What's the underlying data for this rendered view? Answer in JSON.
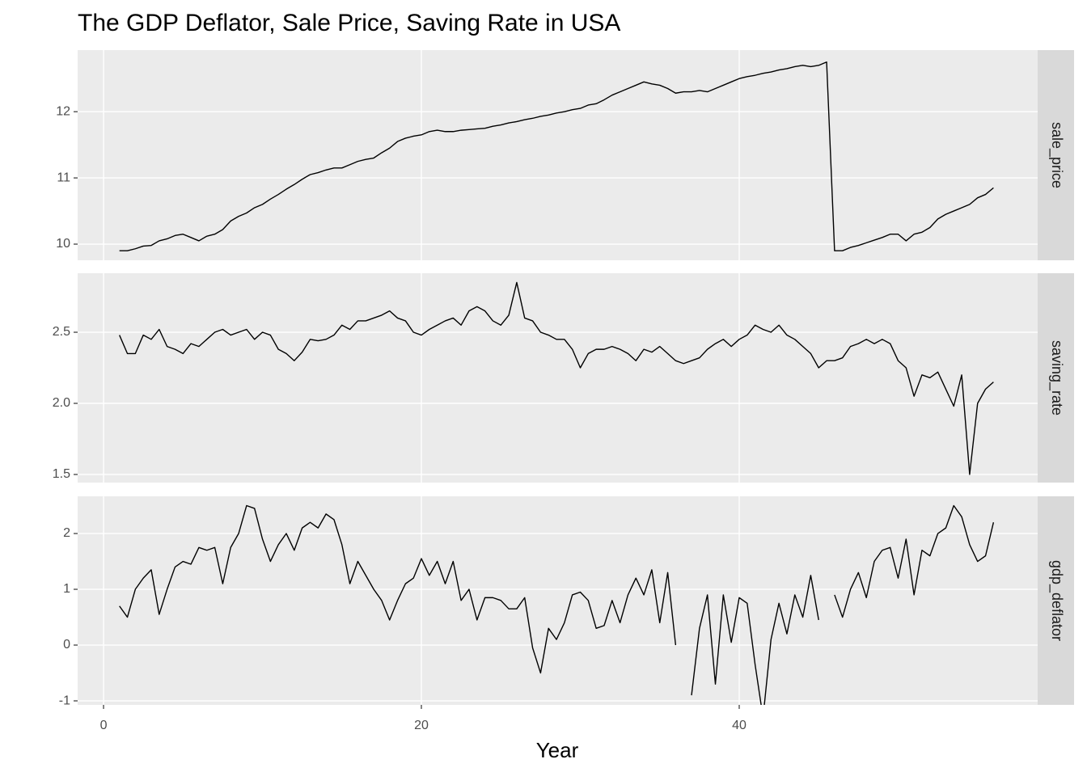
{
  "chart_data": {
    "type": "line",
    "title": "The GDP Deflator, Sale Price, Saving Rate in USA",
    "x_label": "Year",
    "color": "#000000",
    "grid": true,
    "xlim": [
      -1.63,
      58.78
    ],
    "xticks": [
      0,
      20,
      40
    ],
    "x": [
      1,
      1.5,
      2,
      2.5,
      3,
      3.5,
      4,
      4.5,
      5,
      5.5,
      6,
      6.5,
      7,
      7.5,
      8,
      8.5,
      9,
      9.5,
      10,
      10.5,
      11,
      11.5,
      12,
      12.5,
      13,
      13.5,
      14,
      14.5,
      15,
      15.5,
      16,
      16.5,
      17,
      17.5,
      18,
      18.5,
      19,
      19.5,
      20,
      20.5,
      21,
      21.5,
      22,
      22.5,
      23,
      23.5,
      24,
      24.5,
      25,
      25.5,
      26,
      26.5,
      27,
      27.5,
      28,
      28.5,
      29,
      29.5,
      30,
      30.5,
      31,
      31.5,
      32,
      32.5,
      33,
      33.5,
      34,
      34.5,
      35,
      35.5,
      36,
      36.5,
      37,
      37.5,
      38,
      38.5,
      39,
      39.5,
      40,
      40.5,
      41,
      41.5,
      42,
      42.5,
      43,
      43.5,
      44,
      44.5,
      45,
      45.5,
      46,
      46.5,
      47,
      47.5,
      48,
      48.5,
      49,
      49.5,
      50,
      50.5,
      51,
      51.5,
      52,
      52.5,
      53,
      53.5,
      54,
      54.5,
      55,
      55.5,
      56
    ],
    "series": [
      {
        "name": "sale_price",
        "ylim": [
          9.756,
          12.93
        ],
        "yticks": [
          10,
          11,
          12
        ],
        "values": [
          9.9,
          9.9,
          9.93,
          9.97,
          9.98,
          10.05,
          10.08,
          10.13,
          10.15,
          10.1,
          10.05,
          10.12,
          10.15,
          10.22,
          10.35,
          10.42,
          10.47,
          10.55,
          10.6,
          10.68,
          10.75,
          10.83,
          10.9,
          10.98,
          11.05,
          11.08,
          11.12,
          11.15,
          11.15,
          11.2,
          11.25,
          11.28,
          11.3,
          11.38,
          11.45,
          11.55,
          11.6,
          11.63,
          11.65,
          11.7,
          11.72,
          11.7,
          11.7,
          11.72,
          11.73,
          11.74,
          11.75,
          11.78,
          11.8,
          11.83,
          11.85,
          11.88,
          11.9,
          11.93,
          11.95,
          11.98,
          12.0,
          12.03,
          12.05,
          12.1,
          12.12,
          12.18,
          12.25,
          12.3,
          12.35,
          12.4,
          12.45,
          12.42,
          12.4,
          12.35,
          12.28,
          12.3,
          12.3,
          12.32,
          12.3,
          12.35,
          12.4,
          12.45,
          12.5,
          12.53,
          12.55,
          12.58,
          12.6,
          12.63,
          12.65,
          12.68,
          12.7,
          12.68,
          12.7,
          12.75,
          9.9,
          9.9,
          9.95,
          9.98,
          10.02,
          10.06,
          10.1,
          10.15,
          10.15,
          10.05,
          10.15,
          10.18,
          10.25,
          10.38,
          10.45,
          10.5,
          10.55,
          10.6,
          10.7,
          10.75,
          10.85
        ]
      },
      {
        "name": "saving_rate",
        "ylim": [
          1.443,
          2.915
        ],
        "yticks": [
          1.5,
          {
            "value": 2,
            "label": "2.0"
          },
          2.5
        ],
        "values": [
          2.48,
          2.35,
          2.35,
          2.48,
          2.45,
          2.52,
          2.4,
          2.38,
          2.35,
          2.42,
          2.4,
          2.45,
          2.5,
          2.52,
          2.48,
          2.5,
          2.52,
          2.45,
          2.5,
          2.48,
          2.38,
          2.35,
          2.3,
          2.36,
          2.45,
          2.44,
          2.45,
          2.48,
          2.55,
          2.52,
          2.58,
          2.58,
          2.6,
          2.62,
          2.65,
          2.6,
          2.58,
          2.5,
          2.48,
          2.52,
          2.55,
          2.58,
          2.6,
          2.55,
          2.65,
          2.68,
          2.65,
          2.58,
          2.55,
          2.62,
          2.85,
          2.6,
          2.58,
          2.5,
          2.48,
          2.45,
          2.45,
          2.38,
          2.25,
          2.35,
          2.38,
          2.38,
          2.4,
          2.38,
          2.35,
          2.3,
          2.38,
          2.36,
          2.4,
          2.35,
          2.3,
          2.28,
          2.3,
          2.32,
          2.38,
          2.42,
          2.45,
          2.4,
          2.45,
          2.48,
          2.55,
          2.52,
          2.5,
          2.55,
          2.48,
          2.45,
          2.4,
          2.35,
          2.25,
          2.3,
          2.3,
          2.32,
          2.4,
          2.42,
          2.45,
          2.42,
          2.45,
          2.42,
          2.3,
          2.25,
          2.05,
          2.2,
          2.18,
          2.22,
          2.1,
          1.98,
          2.2,
          1.5,
          2.0,
          2.1,
          2.15
        ]
      },
      {
        "name": "gdp_deflator",
        "ylim": [
          -1.072,
          2.667
        ],
        "yticks": [
          -1,
          0,
          1,
          2
        ],
        "values": [
          0.7,
          0.5,
          1.0,
          1.2,
          1.35,
          0.55,
          1.0,
          1.4,
          1.5,
          1.45,
          1.75,
          1.7,
          1.75,
          1.1,
          1.75,
          2.0,
          2.5,
          2.45,
          1.9,
          1.5,
          1.8,
          2.0,
          1.7,
          2.1,
          2.2,
          2.1,
          2.35,
          2.25,
          1.8,
          1.1,
          1.5,
          1.25,
          1.0,
          0.8,
          0.45,
          0.8,
          1.1,
          1.2,
          1.55,
          1.25,
          1.5,
          1.1,
          1.5,
          0.8,
          1.0,
          0.45,
          0.85,
          0.85,
          0.8,
          0.65,
          0.65,
          0.85,
          -0.05,
          -0.5,
          0.3,
          0.1,
          0.4,
          0.9,
          0.95,
          0.8,
          0.3,
          0.35,
          0.8,
          0.4,
          0.9,
          1.2,
          0.9,
          1.35,
          0.4,
          1.3,
          0.0,
          null,
          -0.9,
          0.3,
          0.9,
          -0.7,
          0.9,
          0.05,
          0.85,
          0.75,
          -0.35,
          -1.3,
          0.1,
          0.75,
          0.2,
          0.9,
          0.5,
          1.25,
          0.45,
          null,
          0.9,
          0.5,
          1.0,
          1.3,
          0.85,
          1.5,
          1.7,
          1.75,
          1.2,
          1.9,
          0.9,
          1.7,
          1.6,
          2.0,
          2.1,
          2.5,
          2.3,
          1.8,
          1.5,
          1.6,
          2.2
        ]
      }
    ]
  }
}
